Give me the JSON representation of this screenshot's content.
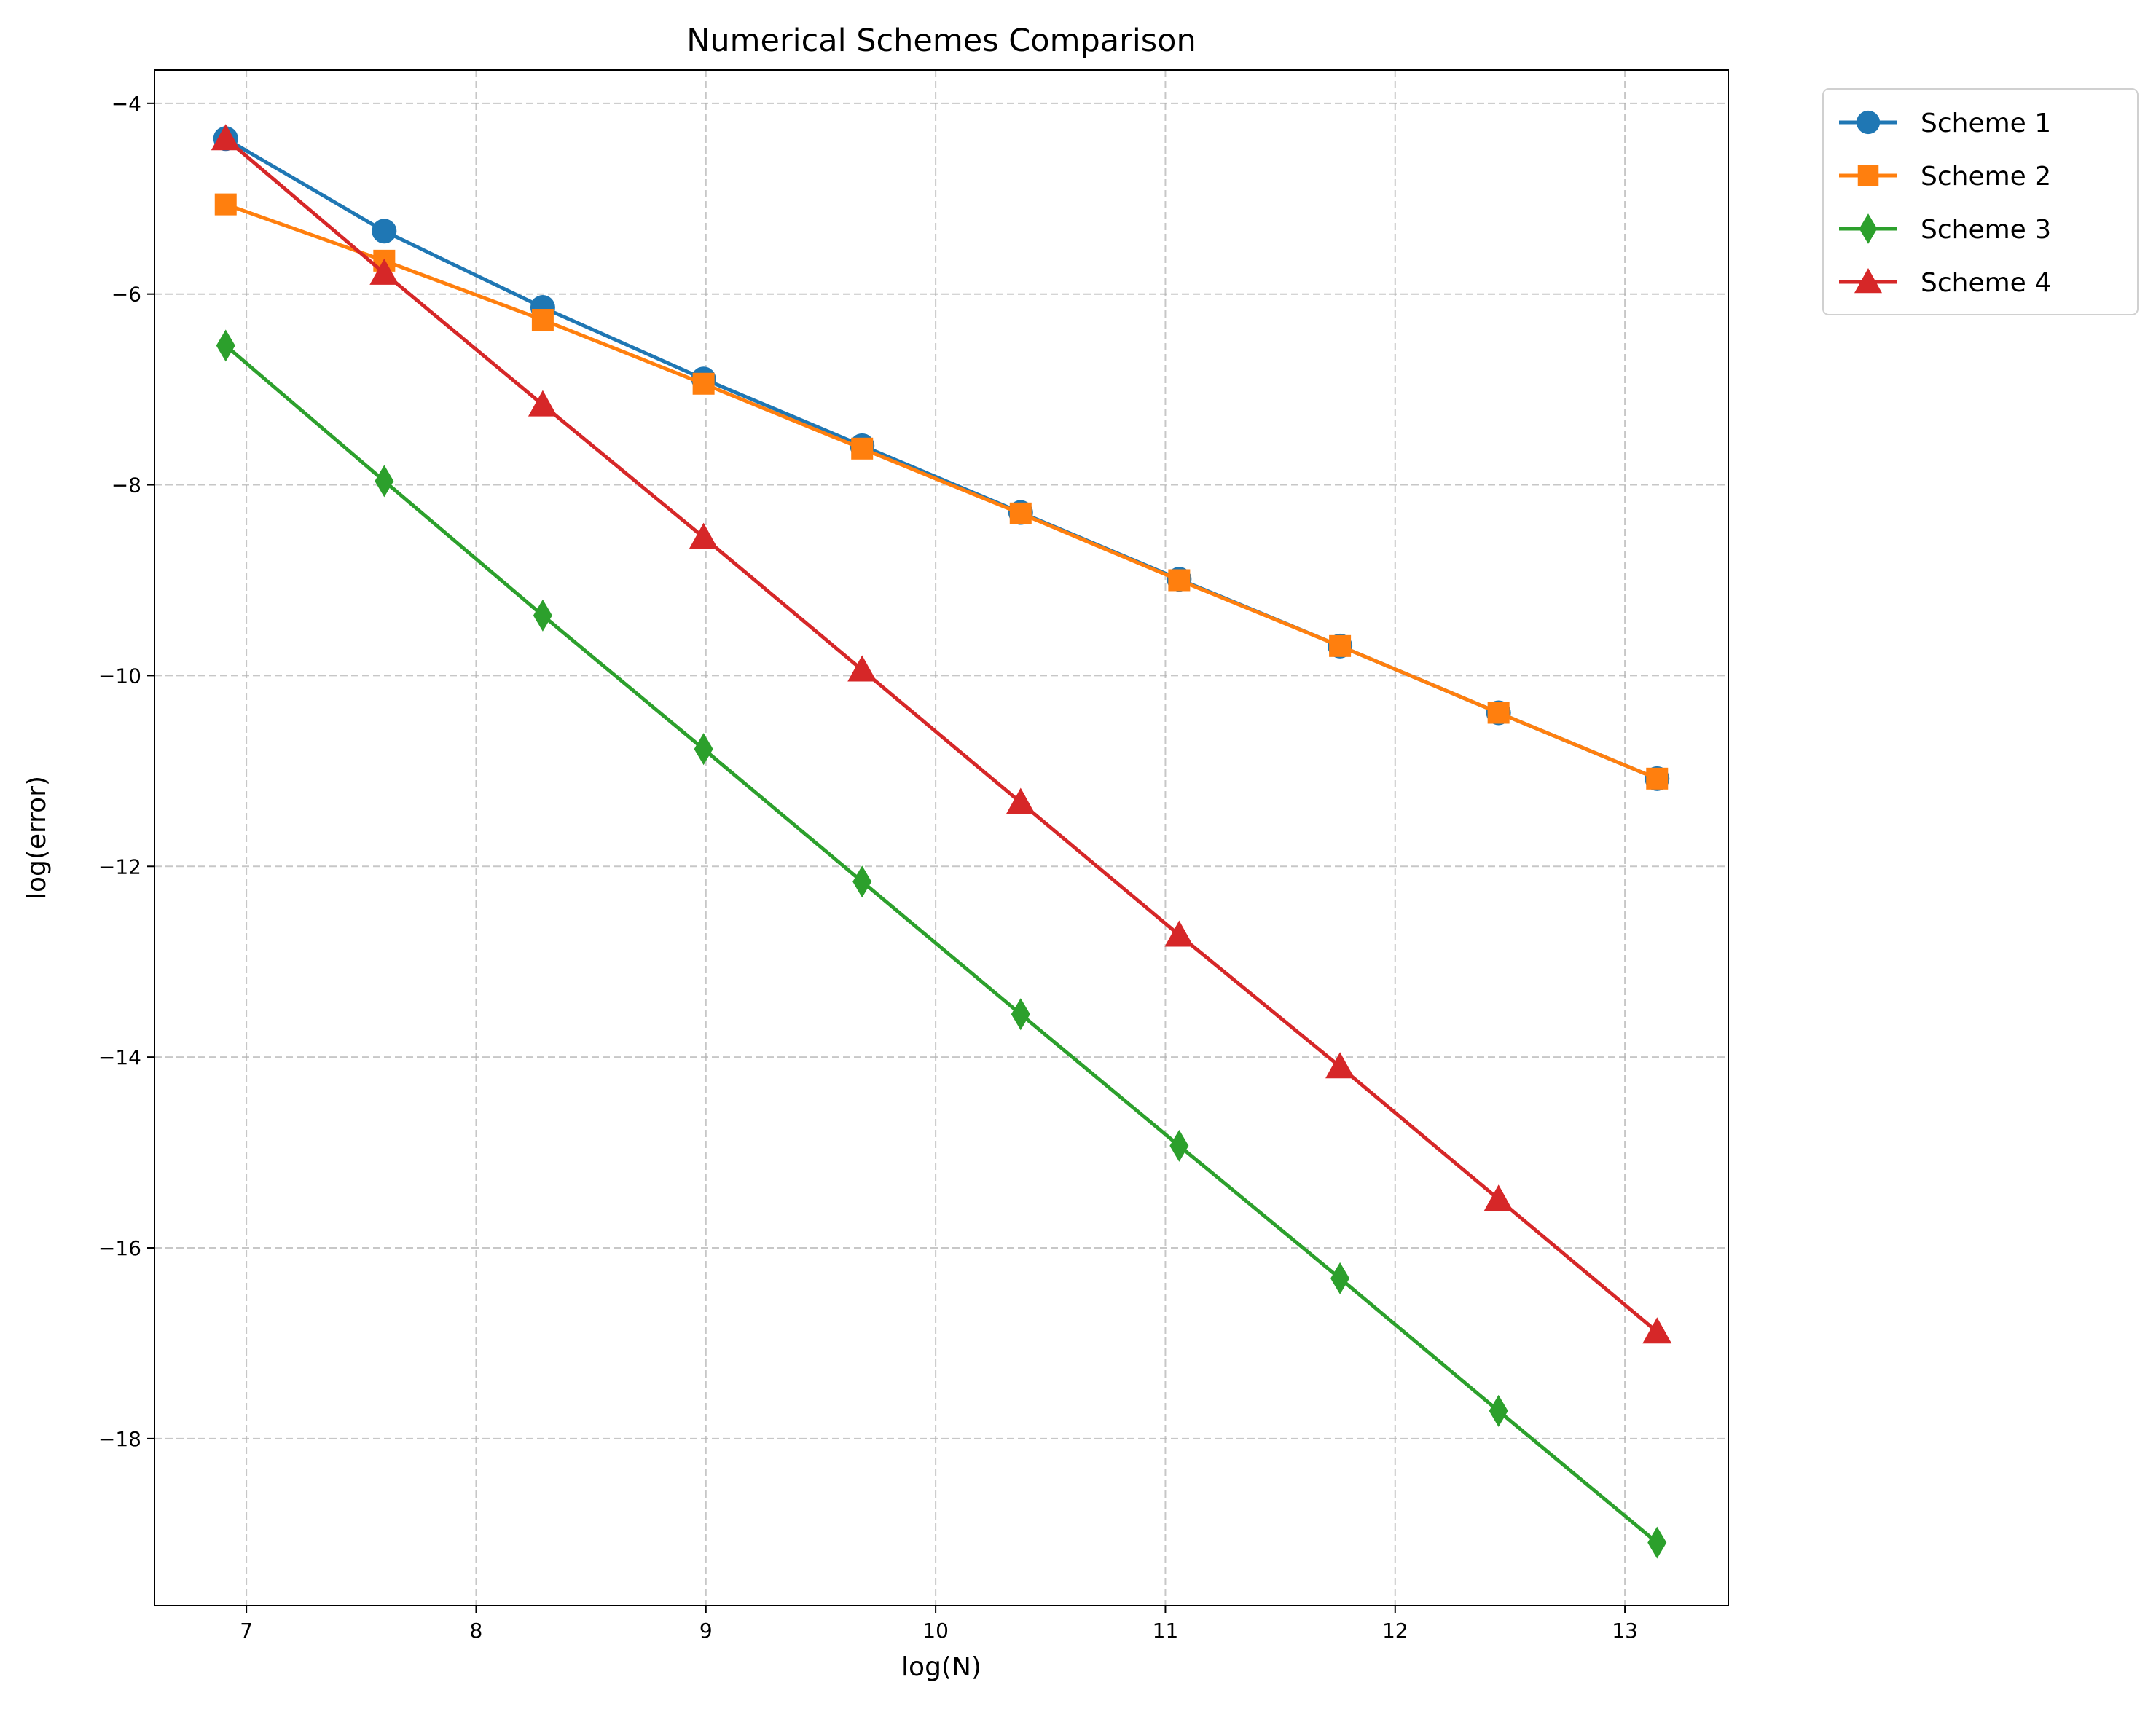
{
  "chart_data": {
    "type": "line",
    "title": "Numerical Schemes Comparison",
    "xlabel": "log(N)",
    "ylabel": "log(error)",
    "xlim": [
      6.6,
      13.45
    ],
    "ylim": [
      -19.75,
      -3.65
    ],
    "xticks": [
      7,
      8,
      9,
      10,
      11,
      12,
      13
    ],
    "yticks": [
      -4,
      -6,
      -8,
      -10,
      -12,
      -14,
      -16,
      -18
    ],
    "grid": true,
    "legend_position": "outside-top-right",
    "x": [
      6.91,
      7.6,
      8.29,
      8.99,
      9.68,
      10.37,
      11.06,
      11.76,
      12.45,
      13.14
    ],
    "series": [
      {
        "name": "Scheme 1",
        "color": "#1f77b4",
        "marker": "circle",
        "values": [
          -4.37,
          -5.34,
          -6.14,
          -6.89,
          -7.59,
          -8.29,
          -8.99,
          -9.69,
          -10.39,
          -11.08
        ]
      },
      {
        "name": "Scheme 2",
        "color": "#ff7f0e",
        "marker": "square",
        "values": [
          -5.06,
          -5.65,
          -6.27,
          -6.94,
          -7.62,
          -8.3,
          -9.0,
          -9.69,
          -10.39,
          -11.08
        ]
      },
      {
        "name": "Scheme 3",
        "color": "#2ca02c",
        "marker": "diamond",
        "values": [
          -6.54,
          -7.96,
          -9.37,
          -10.77,
          -12.16,
          -13.55,
          -14.93,
          -16.32,
          -17.71,
          -19.09
        ]
      },
      {
        "name": "Scheme 4",
        "color": "#d62728",
        "marker": "triangle",
        "values": [
          -4.37,
          -5.78,
          -7.16,
          -8.55,
          -9.94,
          -11.33,
          -12.72,
          -14.1,
          -15.49,
          -16.88
        ]
      }
    ]
  }
}
